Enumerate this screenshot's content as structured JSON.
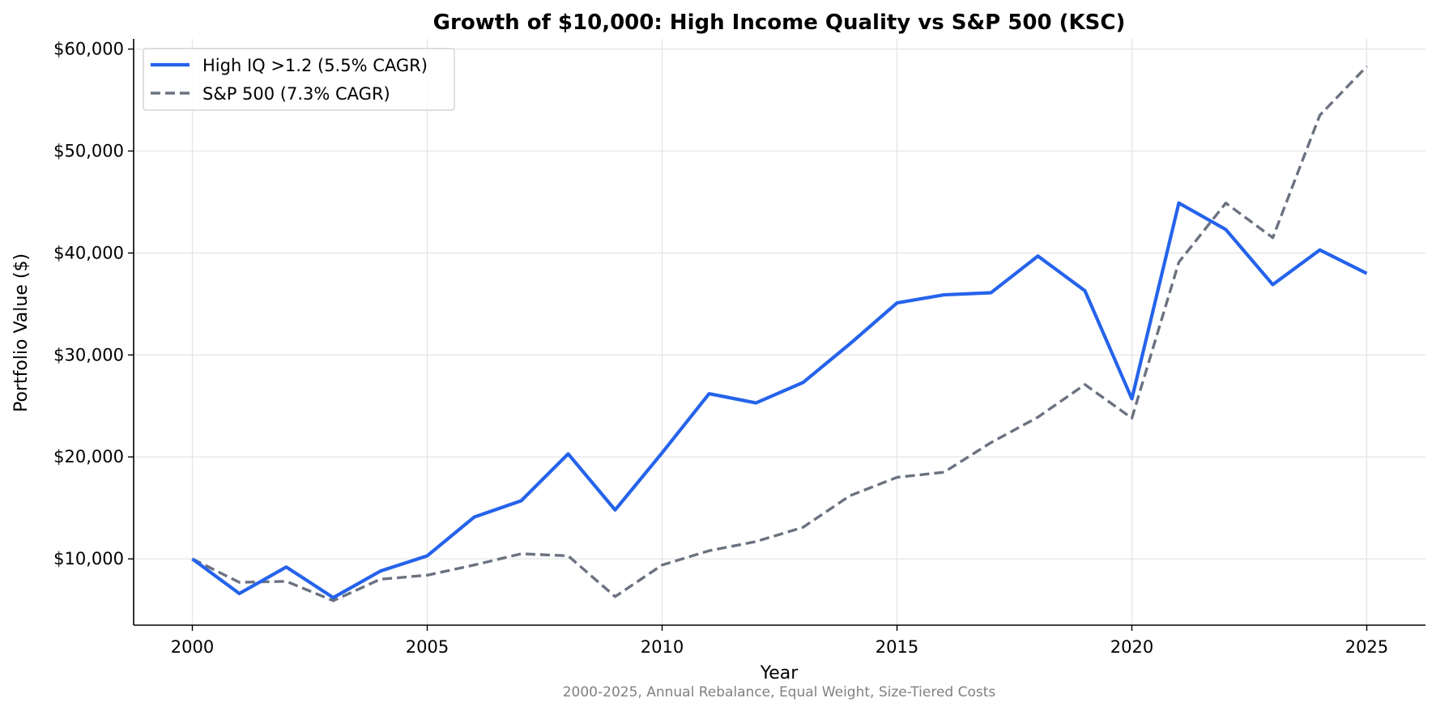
{
  "chart_data": {
    "type": "line",
    "title": "Growth of $10,000: High Income Quality vs S&P 500 (KSC)",
    "subtitle": "2000-2025, Annual Rebalance, Equal Weight, Size-Tiered Costs",
    "xlabel": "Year",
    "ylabel": "Portfolio Value ($)",
    "xlim": [
      1998.75,
      2026.25
    ],
    "ylim": [
      3500,
      61000
    ],
    "x_ticks": [
      2000,
      2005,
      2010,
      2015,
      2020,
      2025
    ],
    "x_tick_labels": [
      "2000",
      "2005",
      "2010",
      "2015",
      "2020",
      "2025"
    ],
    "y_ticks": [
      10000,
      20000,
      30000,
      40000,
      50000,
      60000
    ],
    "y_tick_labels": [
      "$10,000",
      "$20,000",
      "$30,000",
      "$40,000",
      "$50,000",
      "$60,000"
    ],
    "grid": true,
    "legend_position": "top-left",
    "x": [
      2000,
      2001,
      2002,
      2003,
      2004,
      2005,
      2006,
      2007,
      2008,
      2009,
      2010,
      2011,
      2012,
      2013,
      2014,
      2015,
      2016,
      2017,
      2018,
      2019,
      2020,
      2021,
      2022,
      2023,
      2024,
      2025
    ],
    "series": [
      {
        "name": "High IQ >1.2 (5.5% CAGR)",
        "color": "#2563eb",
        "style": "solid",
        "values": [
          10000,
          6600,
          9200,
          6200,
          8800,
          10300,
          14100,
          15700,
          20300,
          14800,
          20400,
          26200,
          25300,
          27300,
          31100,
          35100,
          35900,
          36100,
          39700,
          36300,
          25700,
          44900,
          42300,
          36900,
          40300,
          38000
        ]
      },
      {
        "name": "S&P 500 (7.3% CAGR)",
        "color": "#6b7280",
        "style": "dashed",
        "values": [
          10000,
          7700,
          7800,
          5900,
          8000,
          8400,
          9400,
          10500,
          10300,
          6300,
          9400,
          10800,
          11700,
          13100,
          16200,
          18000,
          18500,
          21400,
          23900,
          27100,
          23800,
          39100,
          44900,
          41500,
          53500,
          58300
        ]
      }
    ]
  }
}
